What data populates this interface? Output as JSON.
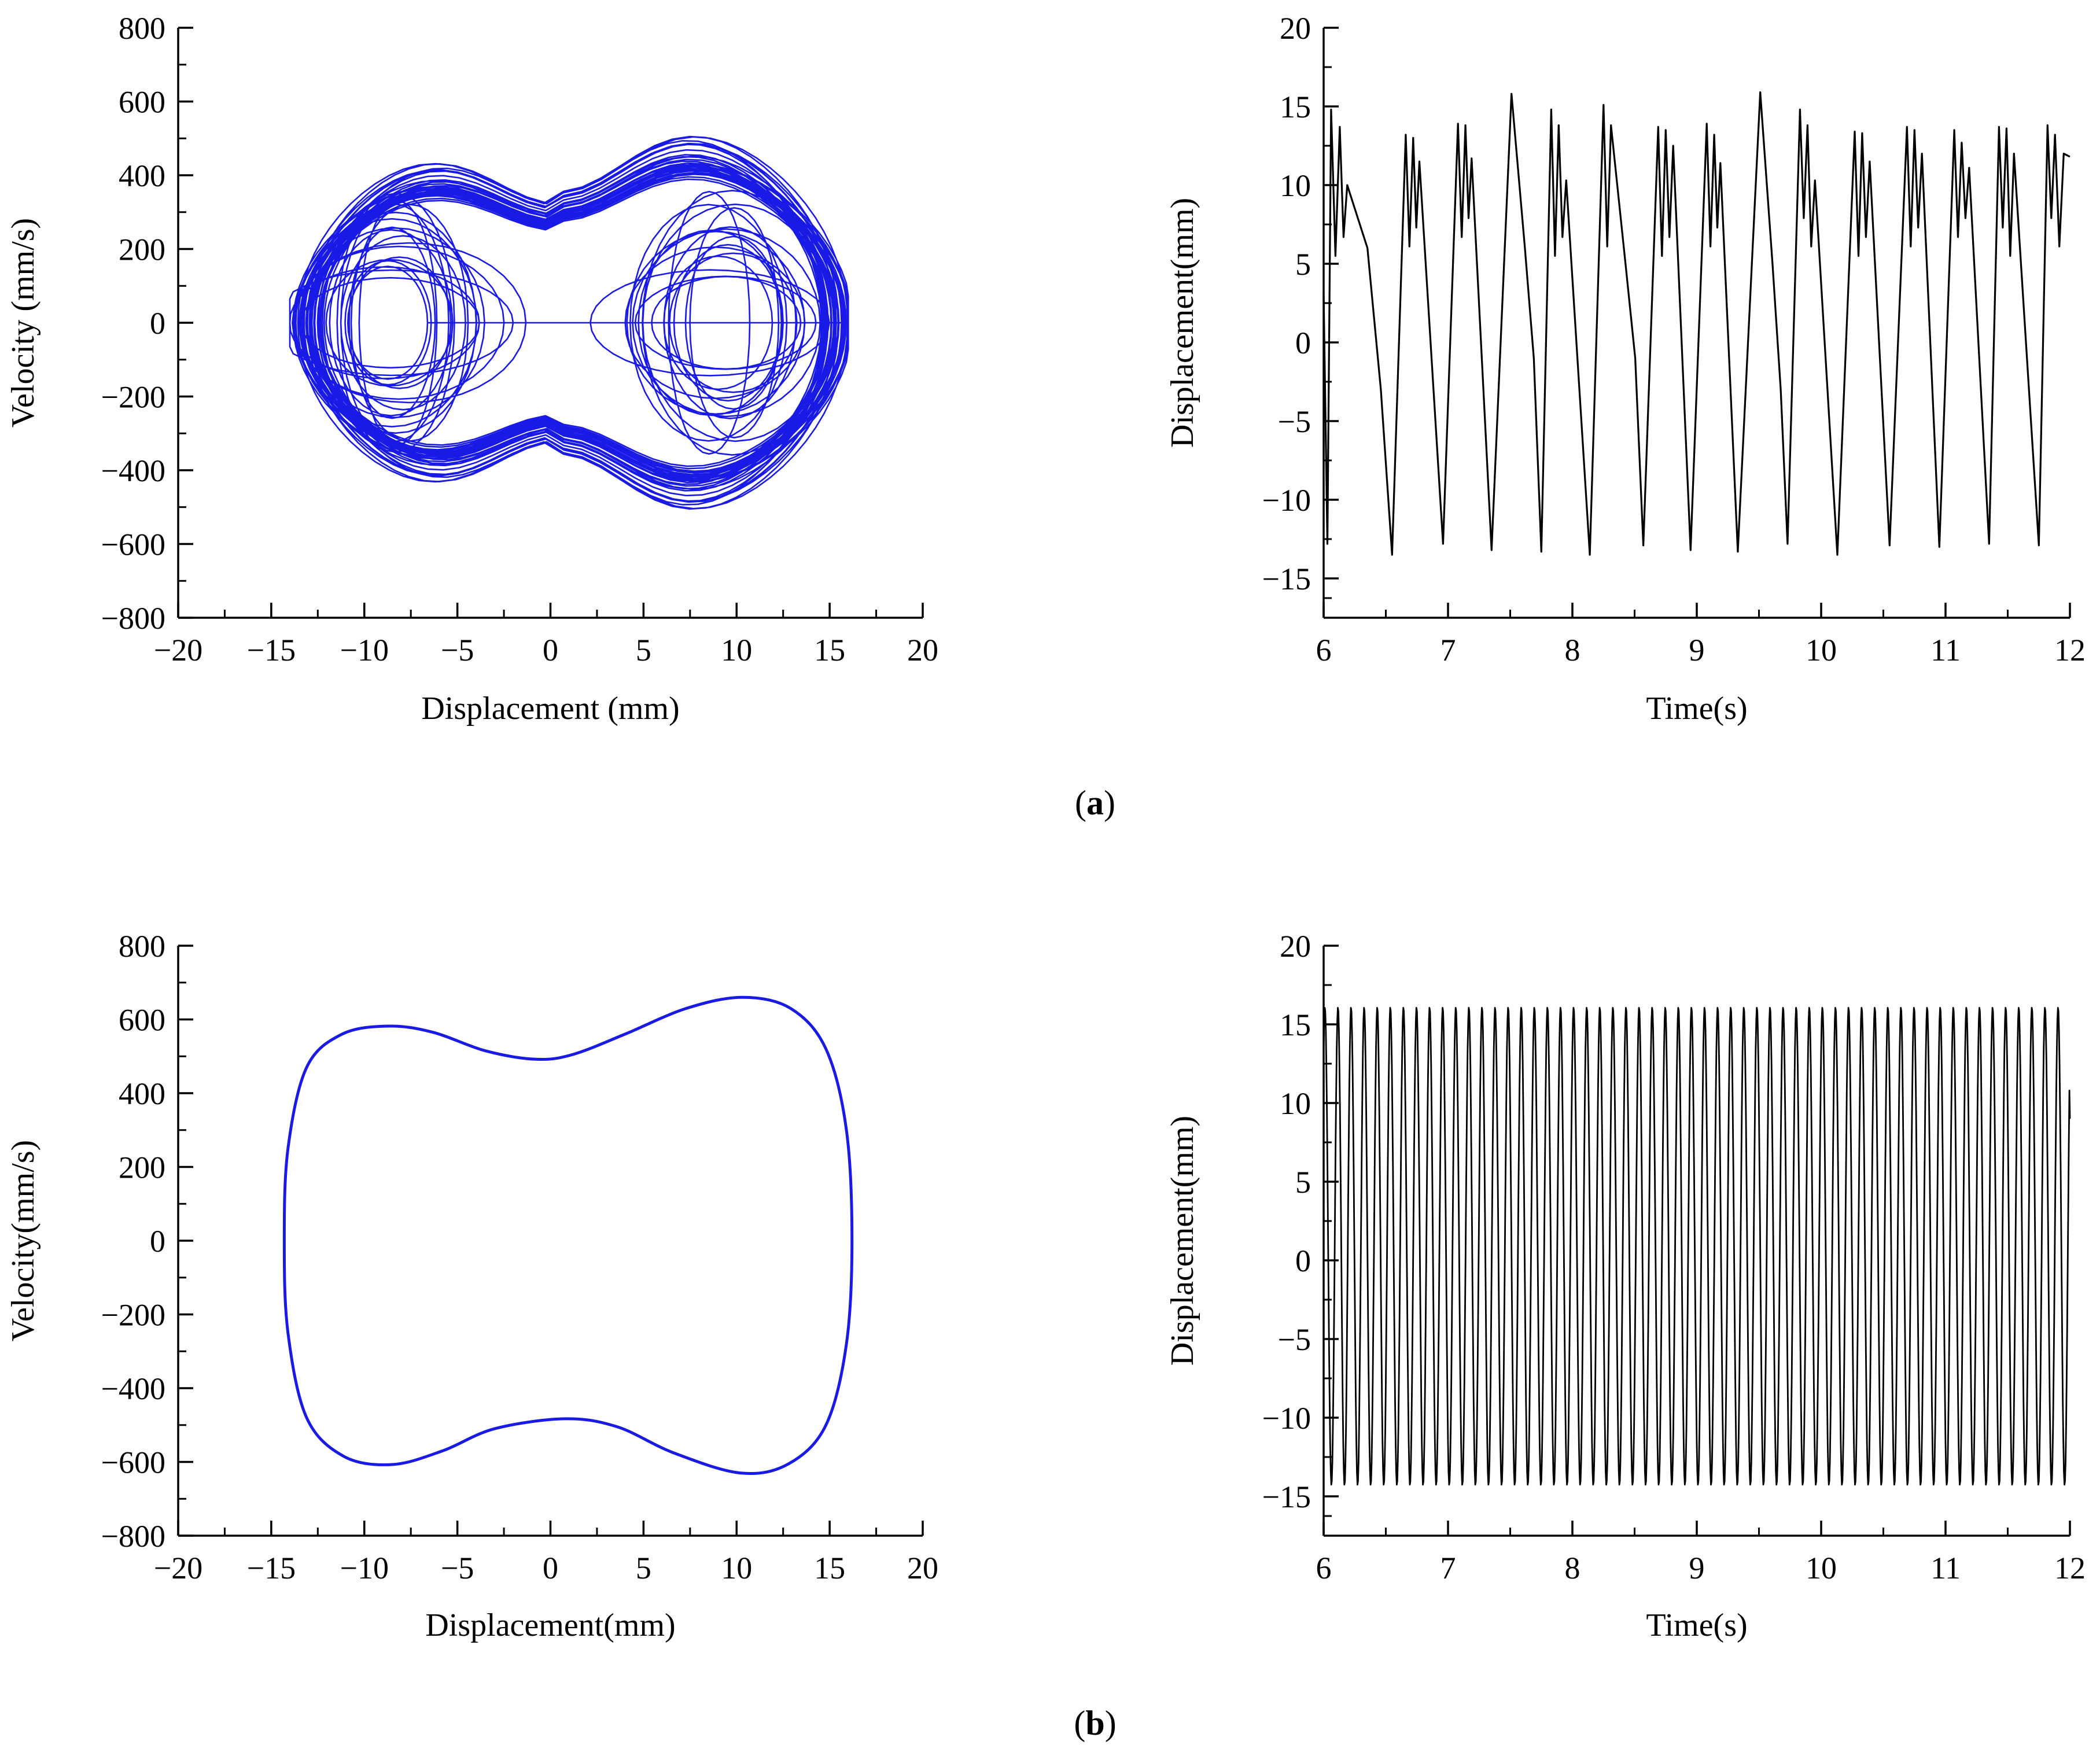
{
  "figure": {
    "panel_labels": [
      {
        "open": "(",
        "letter": "a",
        "close": ")"
      },
      {
        "open": "(",
        "letter": "b",
        "close": ")"
      }
    ]
  },
  "colors": {
    "phase_line": "#1a1ae6",
    "time_line": "#000000",
    "axis": "#000000"
  },
  "chart_data": [
    {
      "id": "a-phase",
      "type": "line",
      "panel": "a",
      "title": "",
      "xlabel": "Displacement (mm)",
      "ylabel": "Velocity (mm/s)",
      "xlim": [
        -20,
        20
      ],
      "ylim": [
        -800,
        800
      ],
      "xticks": [
        -20,
        -15,
        -10,
        -5,
        0,
        5,
        10,
        15,
        20
      ],
      "yticks": [
        -800,
        -600,
        -400,
        -200,
        0,
        200,
        400,
        600,
        800
      ],
      "xtick_labels": [
        "−20",
        "−15",
        "−10",
        "−5",
        "0",
        "5",
        "10",
        "15",
        "20"
      ],
      "ytick_labels": [
        "−800",
        "−600",
        "−400",
        "−200",
        "0",
        "200",
        "400",
        "600",
        "800"
      ],
      "line_color": "#1a1ae6",
      "pattern": "chaotic double-well phase trajectory",
      "x_range": [
        -14,
        16
      ],
      "y_range": [
        -560,
        600
      ]
    },
    {
      "id": "a-time",
      "type": "line",
      "panel": "a",
      "title": "",
      "xlabel": "Time(s)",
      "ylabel": "Displacement(mm)",
      "xlim": [
        6,
        12
      ],
      "ylim": [
        -17.5,
        20
      ],
      "xticks": [
        6,
        7,
        8,
        9,
        10,
        11,
        12
      ],
      "yticks": [
        -15,
        -10,
        -5,
        0,
        5,
        10,
        15,
        20
      ],
      "xtick_labels": [
        "6",
        "7",
        "8",
        "9",
        "10",
        "11",
        "12"
      ],
      "ytick_labels": [
        "−15",
        "−10",
        "−5",
        "0",
        "5",
        "10",
        "15",
        "20"
      ],
      "line_color": "#000000",
      "pattern": "chaotic oscillation",
      "y_range": [
        -13.5,
        15.9
      ],
      "peaks": [
        {
          "x": 6.06,
          "y": 14.8
        },
        {
          "x": 6.13,
          "y": 13.7
        },
        {
          "x": 6.19,
          "y": 10.0
        },
        {
          "x": 6.66,
          "y": 13.2
        },
        {
          "x": 6.72,
          "y": 13.0
        },
        {
          "x": 6.77,
          "y": 11.5
        },
        {
          "x": 7.08,
          "y": 13.9
        },
        {
          "x": 7.14,
          "y": 13.8
        },
        {
          "x": 7.19,
          "y": 11.7
        },
        {
          "x": 7.51,
          "y": 15.8
        },
        {
          "x": 7.83,
          "y": 14.8
        },
        {
          "x": 7.89,
          "y": 13.8
        },
        {
          "x": 7.95,
          "y": 10.3
        },
        {
          "x": 8.25,
          "y": 15.1
        },
        {
          "x": 8.31,
          "y": 13.8
        },
        {
          "x": 8.69,
          "y": 13.7
        },
        {
          "x": 8.75,
          "y": 13.5
        },
        {
          "x": 8.81,
          "y": 12.5
        },
        {
          "x": 9.08,
          "y": 13.9
        },
        {
          "x": 9.14,
          "y": 13.2
        },
        {
          "x": 9.19,
          "y": 11.4
        },
        {
          "x": 9.51,
          "y": 15.9
        },
        {
          "x": 9.83,
          "y": 14.8
        },
        {
          "x": 9.89,
          "y": 13.8
        },
        {
          "x": 9.95,
          "y": 10.3
        },
        {
          "x": 10.27,
          "y": 13.4
        },
        {
          "x": 10.33,
          "y": 13.3
        },
        {
          "x": 10.39,
          "y": 11.5
        },
        {
          "x": 10.69,
          "y": 13.7
        },
        {
          "x": 10.75,
          "y": 13.5
        },
        {
          "x": 10.81,
          "y": 12.0
        },
        {
          "x": 11.07,
          "y": 13.5
        },
        {
          "x": 11.13,
          "y": 12.7
        },
        {
          "x": 11.19,
          "y": 11.1
        },
        {
          "x": 11.43,
          "y": 13.7
        },
        {
          "x": 11.49,
          "y": 13.6
        },
        {
          "x": 11.55,
          "y": 12.0
        },
        {
          "x": 11.82,
          "y": 13.8
        },
        {
          "x": 11.88,
          "y": 13.2
        },
        {
          "x": 11.95,
          "y": 12.0
        }
      ],
      "troughs": [
        {
          "x": 6.03,
          "y": -12.8
        },
        {
          "x": 6.55,
          "y": -13.5
        },
        {
          "x": 6.96,
          "y": -12.8
        },
        {
          "x": 7.35,
          "y": -13.2
        },
        {
          "x": 7.75,
          "y": -13.3
        },
        {
          "x": 8.14,
          "y": -13.5
        },
        {
          "x": 8.57,
          "y": -12.9
        },
        {
          "x": 8.95,
          "y": -13.2
        },
        {
          "x": 9.33,
          "y": -13.3
        },
        {
          "x": 9.73,
          "y": -12.8
        },
        {
          "x": 10.13,
          "y": -13.5
        },
        {
          "x": 10.55,
          "y": -12.9
        },
        {
          "x": 10.95,
          "y": -13.0
        },
        {
          "x": 11.35,
          "y": -12.8
        },
        {
          "x": 11.75,
          "y": -12.9
        }
      ]
    },
    {
      "id": "b-phase",
      "type": "line",
      "panel": "b",
      "title": "",
      "xlabel": "Displacement(mm)",
      "ylabel": "Velocity(mm/s)",
      "xlim": [
        -20,
        20
      ],
      "ylim": [
        -800,
        800
      ],
      "xticks": [
        -20,
        -15,
        -10,
        -5,
        0,
        5,
        10,
        15,
        20
      ],
      "yticks": [
        -800,
        -600,
        -400,
        -200,
        0,
        200,
        400,
        600,
        800
      ],
      "xtick_labels": [
        "−20",
        "−15",
        "−10",
        "−5",
        "0",
        "5",
        "10",
        "15",
        "20"
      ],
      "ytick_labels": [
        "−800",
        "−600",
        "−400",
        "−200",
        "0",
        "200",
        "400",
        "600",
        "800"
      ],
      "line_color": "#1a1ae6",
      "pattern": "period-1 closed orbit",
      "points": [
        {
          "x": 16.2,
          "y": 0
        },
        {
          "x": 15.9,
          "y": 300
        },
        {
          "x": 14.8,
          "y": 520
        },
        {
          "x": 12.9,
          "y": 630
        },
        {
          "x": 10.3,
          "y": 660
        },
        {
          "x": 7.3,
          "y": 630
        },
        {
          "x": 4.0,
          "y": 560
        },
        {
          "x": 1.2,
          "y": 505
        },
        {
          "x": -0.8,
          "y": 492
        },
        {
          "x": -3.5,
          "y": 515
        },
        {
          "x": -6.3,
          "y": 565
        },
        {
          "x": -8.7,
          "y": 582
        },
        {
          "x": -11.2,
          "y": 560
        },
        {
          "x": -13.1,
          "y": 470
        },
        {
          "x": -14.1,
          "y": 250
        },
        {
          "x": -14.3,
          "y": 0
        },
        {
          "x": -14.1,
          "y": -250
        },
        {
          "x": -13.1,
          "y": -480
        },
        {
          "x": -11.1,
          "y": -585
        },
        {
          "x": -8.5,
          "y": -607
        },
        {
          "x": -5.8,
          "y": -570
        },
        {
          "x": -3.0,
          "y": -510
        },
        {
          "x": 0.8,
          "y": -483
        },
        {
          "x": 3.6,
          "y": -505
        },
        {
          "x": 6.6,
          "y": -575
        },
        {
          "x": 10.2,
          "y": -630
        },
        {
          "x": 12.8,
          "y": -605
        },
        {
          "x": 14.8,
          "y": -500
        },
        {
          "x": 15.9,
          "y": -280
        }
      ]
    },
    {
      "id": "b-time",
      "type": "line",
      "panel": "b",
      "title": "",
      "xlabel": "Time(s)",
      "ylabel": "Displacement(mm)",
      "xlim": [
        6,
        12
      ],
      "ylim": [
        -17.5,
        20
      ],
      "xticks": [
        6,
        7,
        8,
        9,
        10,
        11,
        12
      ],
      "yticks": [
        -15,
        -10,
        -5,
        0,
        5,
        10,
        15,
        20
      ],
      "xtick_labels": [
        "6",
        "7",
        "8",
        "9",
        "10",
        "11",
        "12"
      ],
      "ytick_labels": [
        "−15",
        "−10",
        "−5",
        "0",
        "5",
        "10",
        "15",
        "20"
      ],
      "line_color": "#000000",
      "pattern": "periodic oscillation",
      "cycles_in_view": 57,
      "max": 16.1,
      "min": -14.3,
      "end_value": 9.0
    }
  ]
}
